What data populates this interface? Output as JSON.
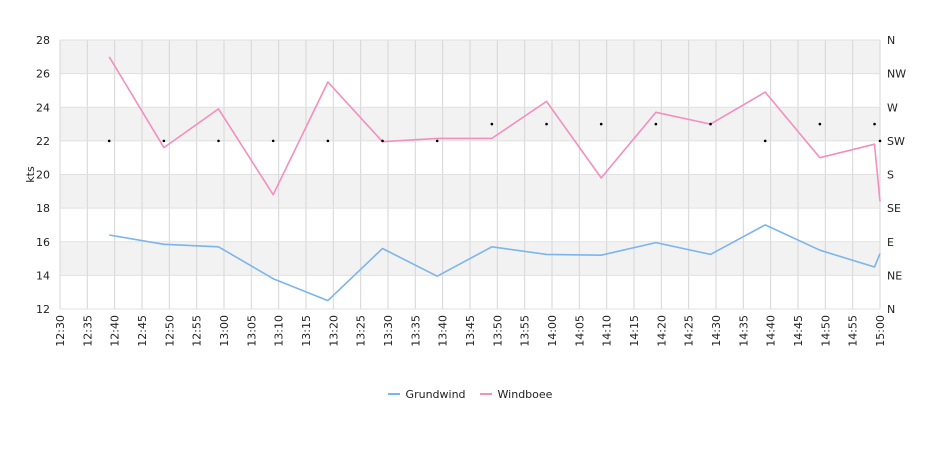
{
  "chart_data": {
    "type": "line",
    "title": "",
    "xlabel": "",
    "ylabel": "kts",
    "ylim": [
      12,
      28
    ],
    "yticks": [
      "12",
      "14",
      "16",
      "18",
      "20",
      "22",
      "24",
      "26",
      "28"
    ],
    "xlim": [
      "12:30",
      "15:00"
    ],
    "xticks": [
      "12:30",
      "12:35",
      "12:40",
      "12:45",
      "12:50",
      "12:55",
      "13:00",
      "13:05",
      "13:10",
      "13:15",
      "13:20",
      "13:25",
      "13:30",
      "13:35",
      "13:40",
      "13:45",
      "13:50",
      "13:55",
      "14:00",
      "14:05",
      "14:10",
      "14:15",
      "14:20",
      "14:25",
      "14:30",
      "14:35",
      "14:40",
      "14:45",
      "14:50",
      "14:55",
      "15:00"
    ],
    "y2_ticks": [
      "N",
      "NE",
      "E",
      "SE",
      "S",
      "SW",
      "W",
      "NW",
      "N"
    ],
    "grid": true,
    "legend_position": "bottom",
    "series": [
      {
        "name": "Grundwind",
        "color": "#7cb5ec",
        "x": [
          "12:39",
          "12:49",
          "12:59",
          "13:09",
          "13:19",
          "13:29",
          "13:39",
          "13:49",
          "13:59",
          "14:09",
          "14:19",
          "14:29",
          "14:39",
          "14:49",
          "14:59",
          "15:00"
        ],
        "values": [
          16.4,
          15.85,
          15.7,
          13.8,
          12.5,
          15.6,
          13.95,
          15.7,
          15.25,
          15.2,
          15.95,
          15.25,
          17.0,
          15.5,
          14.5,
          15.3
        ]
      },
      {
        "name": "Windboee",
        "color": "#f28fbf",
        "x": [
          "12:39",
          "12:49",
          "12:59",
          "13:09",
          "13:19",
          "13:29",
          "13:39",
          "13:49",
          "13:59",
          "14:09",
          "14:19",
          "14:29",
          "14:39",
          "14:49",
          "14:59",
          "15:00"
        ],
        "values": [
          27.0,
          21.6,
          23.9,
          18.8,
          25.5,
          21.95,
          22.15,
          22.15,
          24.35,
          19.8,
          23.7,
          23.0,
          24.9,
          21.0,
          21.8,
          18.4
        ]
      }
    ],
    "direction_points": {
      "x": [
        "12:39",
        "12:49",
        "12:59",
        "13:09",
        "13:19",
        "13:29",
        "13:39",
        "13:49",
        "13:59",
        "14:09",
        "14:19",
        "14:29",
        "14:39",
        "14:49",
        "14:59",
        "15:00"
      ],
      "direction": [
        "SW",
        "SW",
        "SW",
        "SW",
        "SW",
        "SW",
        "SW",
        "SW/W",
        "SW/W",
        "SW/W",
        "SW/W",
        "SW/W",
        "SW",
        "SW/W",
        "SW/W",
        "SW"
      ]
    }
  }
}
